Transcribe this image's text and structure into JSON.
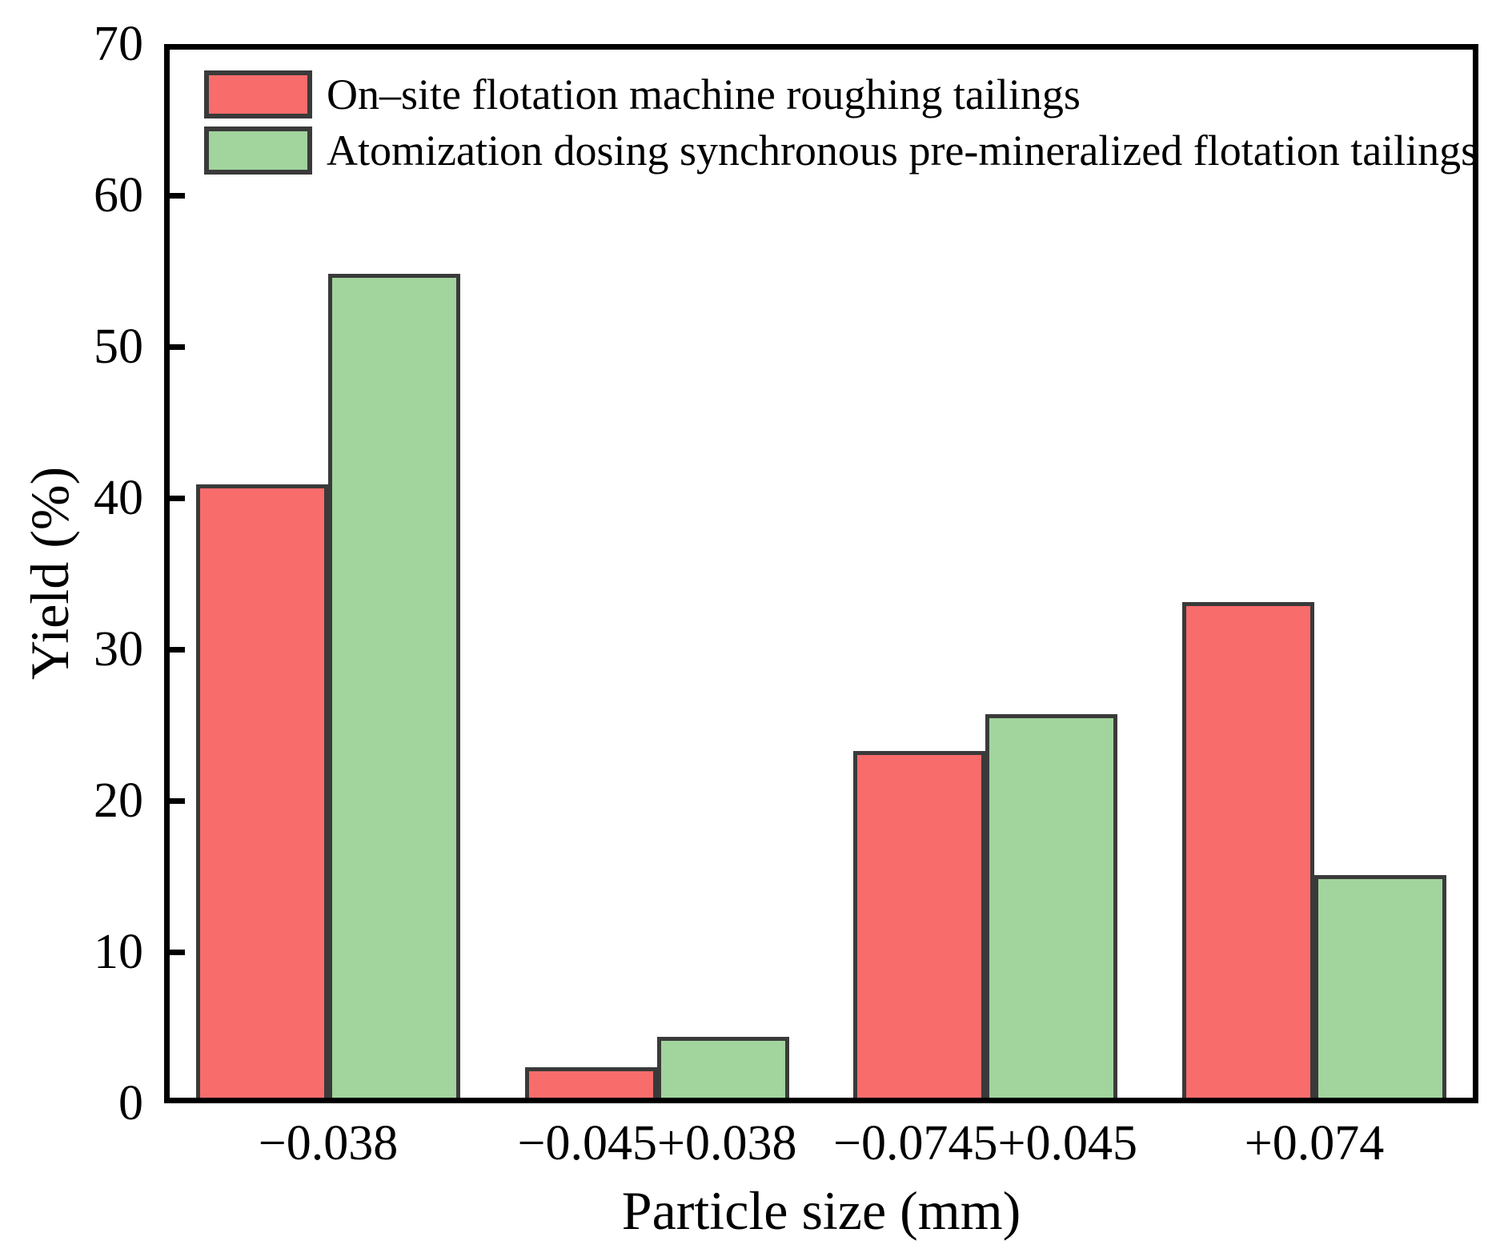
{
  "chart_data": {
    "type": "bar",
    "title": "",
    "xlabel": "Particle size (mm)",
    "ylabel": "Yield (%)",
    "categories": [
      "−0.038",
      "−0.045+0.038",
      "−0.0745+0.045",
      "+0.074"
    ],
    "series": [
      {
        "name": "On–site flotation machine roughing tailings",
        "color": "#f96c6c",
        "values": [
          40.9,
          2.4,
          23.3,
          33.1
        ]
      },
      {
        "name": "Atomization dosing synchronous pre-mineralized flotation tailings",
        "color": "#a2d49d",
        "values": [
          54.8,
          4.4,
          25.7,
          15.1
        ]
      }
    ],
    "ylim": [
      0,
      70
    ],
    "yticks": [
      0,
      10,
      20,
      30,
      40,
      50,
      60,
      70
    ],
    "bar_edge_color": "#3a3a3a",
    "axis_color": "#000000",
    "background_color": "#ffffff",
    "grid": false,
    "legend_position": "upper-left"
  }
}
